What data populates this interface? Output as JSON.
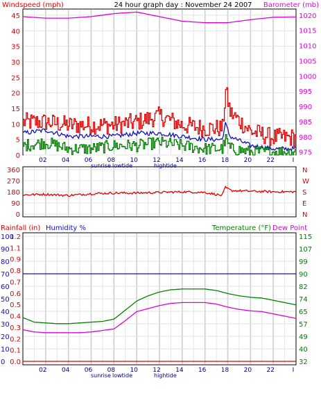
{
  "header": {
    "left_label": "Windspeed (mph)",
    "title": "24 hour graph day : November 24 2007",
    "right_label": "Barometer (mb)"
  },
  "colors": {
    "red": "#e00000",
    "magenta": "#dd00dd",
    "blue": "#1010c0",
    "green": "#008000",
    "grid": "#c8c8c8",
    "frame": "#000000"
  },
  "x_axis": {
    "ticks": [
      "02",
      "04",
      "06",
      "08",
      "10",
      "12",
      "14",
      "16",
      "18",
      "20",
      "22",
      "I"
    ],
    "events": [
      "sunrise",
      "lowtide",
      "hightide"
    ]
  },
  "chart_data": [
    {
      "type": "line",
      "panel": "wind-barometer",
      "x_range": [
        0,
        24
      ],
      "yleft_label": "Windspeed (mph)",
      "yleft_ticks": [
        "45",
        "40",
        "35",
        "30",
        "25",
        "20",
        "15",
        "10",
        "5",
        "0"
      ],
      "yleft_range": [
        0,
        47
      ],
      "yright_label": "Barometer (mb)",
      "yright_ticks": [
        "1020",
        "1015",
        "1010",
        "1005",
        "1000",
        "995",
        "990",
        "985",
        "980",
        "975"
      ],
      "yright_range": [
        974,
        1022
      ],
      "series": [
        {
          "color": "#e00000",
          "axis": "left",
          "style": "gust",
          "x": [
            0,
            2,
            4,
            6,
            8,
            10,
            11,
            12,
            14,
            16,
            17.5,
            17.8,
            18.2,
            20,
            22,
            24
          ],
          "y": [
            10,
            10,
            9,
            9,
            9,
            10,
            11,
            12,
            9,
            8,
            8,
            20,
            13,
            7,
            5,
            5
          ]
        },
        {
          "color": "#1010c0",
          "axis": "left",
          "style": "smooth",
          "x": [
            0,
            2,
            4,
            6,
            8,
            10,
            12,
            14,
            16,
            17.5,
            17.8,
            18.2,
            20,
            22,
            24
          ],
          "y": [
            7,
            8,
            6,
            6,
            6,
            7,
            7,
            6,
            5,
            5,
            10,
            6,
            3,
            2,
            2
          ]
        },
        {
          "color": "#008000",
          "axis": "left",
          "style": "jagged",
          "x": [
            0,
            2,
            4,
            6,
            8,
            10,
            12,
            14,
            16,
            17.5,
            17.8,
            18.2,
            20,
            22,
            24
          ],
          "y": [
            3,
            4,
            2,
            2,
            3,
            3,
            4,
            3,
            2,
            2,
            5,
            2,
            1,
            1,
            1
          ]
        },
        {
          "color": "#dd00dd",
          "axis": "right",
          "style": "smooth",
          "x": [
            0,
            2,
            4,
            6,
            8,
            10,
            12,
            14,
            16,
            18,
            20,
            22,
            24
          ],
          "y": [
            1019.5,
            1019,
            1019,
            1019.5,
            1020.5,
            1021,
            1019.5,
            1018,
            1017.5,
            1017.5,
            1018.5,
            1019.3,
            1019.4
          ]
        }
      ]
    },
    {
      "type": "line",
      "panel": "wind-direction",
      "x_range": [
        0,
        24
      ],
      "yleft_ticks": [
        "360",
        "270",
        "180",
        "90",
        "0"
      ],
      "yleft_range": [
        0,
        360
      ],
      "yright_ticks": [
        "N",
        "W",
        "S",
        "E",
        "N"
      ],
      "series": [
        {
          "color": "#e00000",
          "axis": "left",
          "style": "noisy",
          "x": [
            0,
            2,
            4,
            6,
            8,
            10,
            12,
            14,
            16,
            17.5,
            17.8,
            18.3,
            20,
            22,
            24
          ],
          "y": [
            155,
            160,
            150,
            165,
            170,
            170,
            175,
            180,
            175,
            150,
            215,
            190,
            185,
            180,
            180
          ]
        }
      ]
    },
    {
      "type": "line",
      "panel": "rain-humidity-temperature",
      "x_range": [
        0,
        24
      ],
      "labels": [
        "Rainfall (in)",
        "Humidity %",
        "Temperature (°F)",
        "Dew Point"
      ],
      "rain_ticks": [
        "1.2",
        "1.1",
        "0.9",
        "0.8",
        "0.7",
        "0.6",
        "0.5",
        "0.4",
        "0.3",
        "0.2",
        "0.1",
        "0.0"
      ],
      "humidity_ticks": [
        "100",
        "90",
        "80",
        "70",
        "60",
        "50",
        "40",
        "30",
        "20",
        "10",
        "0"
      ],
      "humidity_range": [
        0,
        100
      ],
      "temperature_ticks": [
        "115",
        "107",
        "99",
        "90",
        "82",
        "74",
        "65",
        "57",
        "49",
        "40",
        "32"
      ],
      "temperature_range": [
        32,
        115
      ],
      "series": [
        {
          "color": "#1010c0",
          "axis": "humidity",
          "style": "flat",
          "x": [
            0,
            24
          ],
          "y": [
            70,
            70
          ]
        },
        {
          "color": "#e00000",
          "axis": "humidity",
          "style": "flat",
          "x": [
            0,
            24
          ],
          "y": [
            0,
            0
          ]
        },
        {
          "color": "#008000",
          "axis": "temperature",
          "style": "smooth",
          "x": [
            0,
            1,
            2,
            3,
            4,
            5,
            6,
            7,
            8,
            9,
            10,
            11,
            12,
            13,
            14,
            15,
            16,
            17,
            18,
            19,
            20,
            21,
            22,
            23,
            24
          ],
          "y": [
            61,
            58,
            57.5,
            57,
            57,
            57.5,
            58,
            58.5,
            60,
            66,
            72,
            75.5,
            78,
            79.5,
            80,
            80,
            80,
            79,
            77,
            75.5,
            74.5,
            74,
            72.5,
            71,
            69.5
          ]
        },
        {
          "color": "#dd00dd",
          "axis": "temperature",
          "style": "smooth",
          "x": [
            0,
            1,
            2,
            3,
            4,
            5,
            6,
            7,
            8,
            9,
            10,
            11,
            12,
            13,
            14,
            15,
            16,
            17,
            18,
            19,
            20,
            21,
            22,
            23,
            24
          ],
          "y": [
            53,
            51.5,
            51,
            51,
            51,
            51,
            51.5,
            52.5,
            53.5,
            59,
            65,
            67,
            69,
            70.5,
            71,
            71,
            71,
            70,
            68,
            66.5,
            65.5,
            65,
            63.5,
            62,
            60.5
          ]
        }
      ]
    }
  ]
}
